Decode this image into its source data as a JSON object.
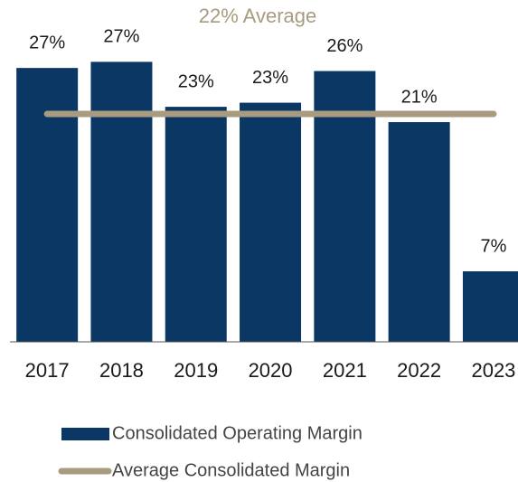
{
  "chart_data": {
    "type": "bar",
    "annotation": "22% Average",
    "categories": [
      "2017",
      "2018",
      "2019",
      "2020",
      "2021",
      "2022",
      "2023"
    ],
    "series": [
      {
        "name": "Consolidated Operating Margin",
        "type": "bar",
        "color": "#0b3765",
        "values": [
          26.8,
          27.4,
          23.0,
          23.4,
          26.5,
          21.5,
          6.9
        ],
        "value_labels": [
          "27%",
          "27%",
          "23%",
          "23%",
          "26%",
          "21%",
          "7%"
        ]
      },
      {
        "name": "Average Consolidated Margin",
        "type": "line",
        "color": "#a89b7f",
        "values": [
          22.3,
          22.3,
          22.3,
          22.3,
          22.3,
          22.3,
          22.3
        ]
      }
    ],
    "ylim": [
      0,
      30
    ]
  }
}
